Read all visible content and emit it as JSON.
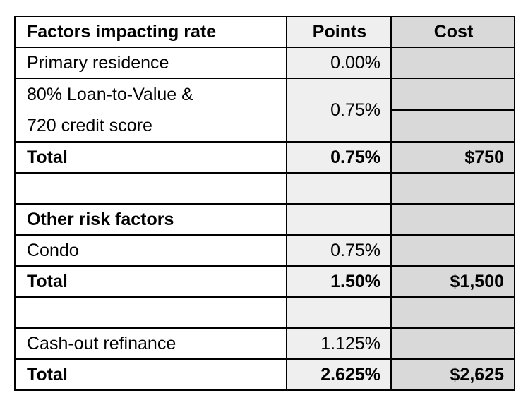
{
  "table": {
    "header": {
      "factor": "Factors impacting rate",
      "points": "Points",
      "cost": "Cost"
    },
    "rows": [
      {
        "factor": "Primary residence",
        "points": "0.00%"
      },
      {
        "factor_lines": [
          "80% Loan-to-Value &",
          "720 credit score"
        ],
        "points": "0.75%"
      },
      {
        "factor": "Total",
        "points": "0.75%",
        "cost": "$750"
      },
      {
        "factor": "Other risk factors"
      },
      {
        "factor": "Condo",
        "points": "0.75%"
      },
      {
        "factor": "Total",
        "points": "1.50%",
        "cost": "$1,500"
      },
      {
        "factor": "Cash-out refinance",
        "points": "1.125%"
      },
      {
        "factor": "Total",
        "points": "2.625%",
        "cost": "$2,625"
      }
    ]
  }
}
